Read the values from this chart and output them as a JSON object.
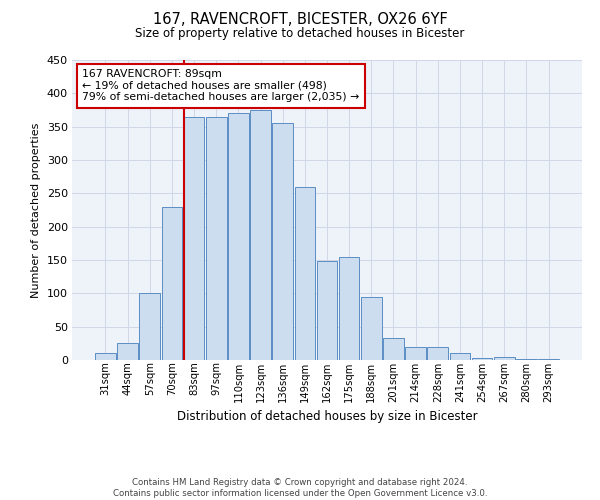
{
  "title": "167, RAVENCROFT, BICESTER, OX26 6YF",
  "subtitle": "Size of property relative to detached houses in Bicester",
  "xlabel": "Distribution of detached houses by size in Bicester",
  "ylabel": "Number of detached properties",
  "bar_labels": [
    "31sqm",
    "44sqm",
    "57sqm",
    "70sqm",
    "83sqm",
    "97sqm",
    "110sqm",
    "123sqm",
    "136sqm",
    "149sqm",
    "162sqm",
    "175sqm",
    "188sqm",
    "201sqm",
    "214sqm",
    "228sqm",
    "241sqm",
    "254sqm",
    "267sqm",
    "280sqm",
    "293sqm"
  ],
  "bar_values": [
    10,
    25,
    100,
    230,
    365,
    365,
    370,
    375,
    355,
    260,
    148,
    155,
    95,
    33,
    20,
    20,
    10,
    3,
    5,
    2,
    2
  ],
  "bar_color": "#ccddf0",
  "bar_edge_color": "#5b8ec4",
  "grid_color": "#d0d8e8",
  "bg_color": "#eef3fa",
  "ylim": [
    0,
    450
  ],
  "yticks": [
    0,
    50,
    100,
    150,
    200,
    250,
    300,
    350,
    400,
    450
  ],
  "marker_bar_index": 4,
  "marker_label_line1": "167 RAVENCROFT: 89sqm",
  "marker_label_line2": "← 19% of detached houses are smaller (498)",
  "marker_label_line3": "79% of semi-detached houses are larger (2,035) →",
  "marker_color": "#cc0000",
  "annotation_box_edge": "#cc0000",
  "footnote1": "Contains HM Land Registry data © Crown copyright and database right 2024.",
  "footnote2": "Contains public sector information licensed under the Open Government Licence v3.0."
}
